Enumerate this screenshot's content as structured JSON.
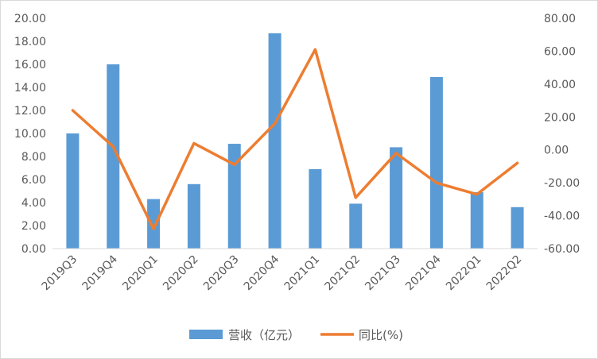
{
  "chart_data": {
    "type": "bar+line",
    "title": "",
    "categories": [
      "2019Q3",
      "2019Q4",
      "2020Q1",
      "2020Q2",
      "2020Q3",
      "2020Q4",
      "2021Q1",
      "2021Q2",
      "2021Q3",
      "2021Q4",
      "2022Q1",
      "2022Q2"
    ],
    "series": [
      {
        "name": "营收（亿元）",
        "type": "bar",
        "axis": "left",
        "color": "#5B9BD5",
        "values": [
          10.0,
          16.0,
          4.3,
          5.6,
          9.1,
          18.7,
          6.9,
          3.9,
          8.8,
          14.9,
          4.9,
          3.6
        ]
      },
      {
        "name": "同比(%)",
        "type": "line",
        "axis": "right",
        "color": "#ED7D31",
        "values": [
          24.0,
          2.0,
          -48.0,
          4.0,
          -9.0,
          16.0,
          61.0,
          -29.0,
          -2.0,
          -20.0,
          -27.0,
          -8.0
        ]
      }
    ],
    "y_left": {
      "ylim": [
        0,
        20
      ],
      "ticks": [
        "0.00",
        "2.00",
        "4.00",
        "6.00",
        "8.00",
        "10.00",
        "12.00",
        "14.00",
        "16.00",
        "18.00",
        "20.00"
      ]
    },
    "y_right": {
      "ylim": [
        -60,
        80
      ],
      "ticks": [
        "-60.00",
        "-40.00",
        "-20.00",
        "0.00",
        "20.00",
        "40.00",
        "60.00",
        "80.00"
      ]
    },
    "grid": false,
    "legend_position": "bottom"
  }
}
